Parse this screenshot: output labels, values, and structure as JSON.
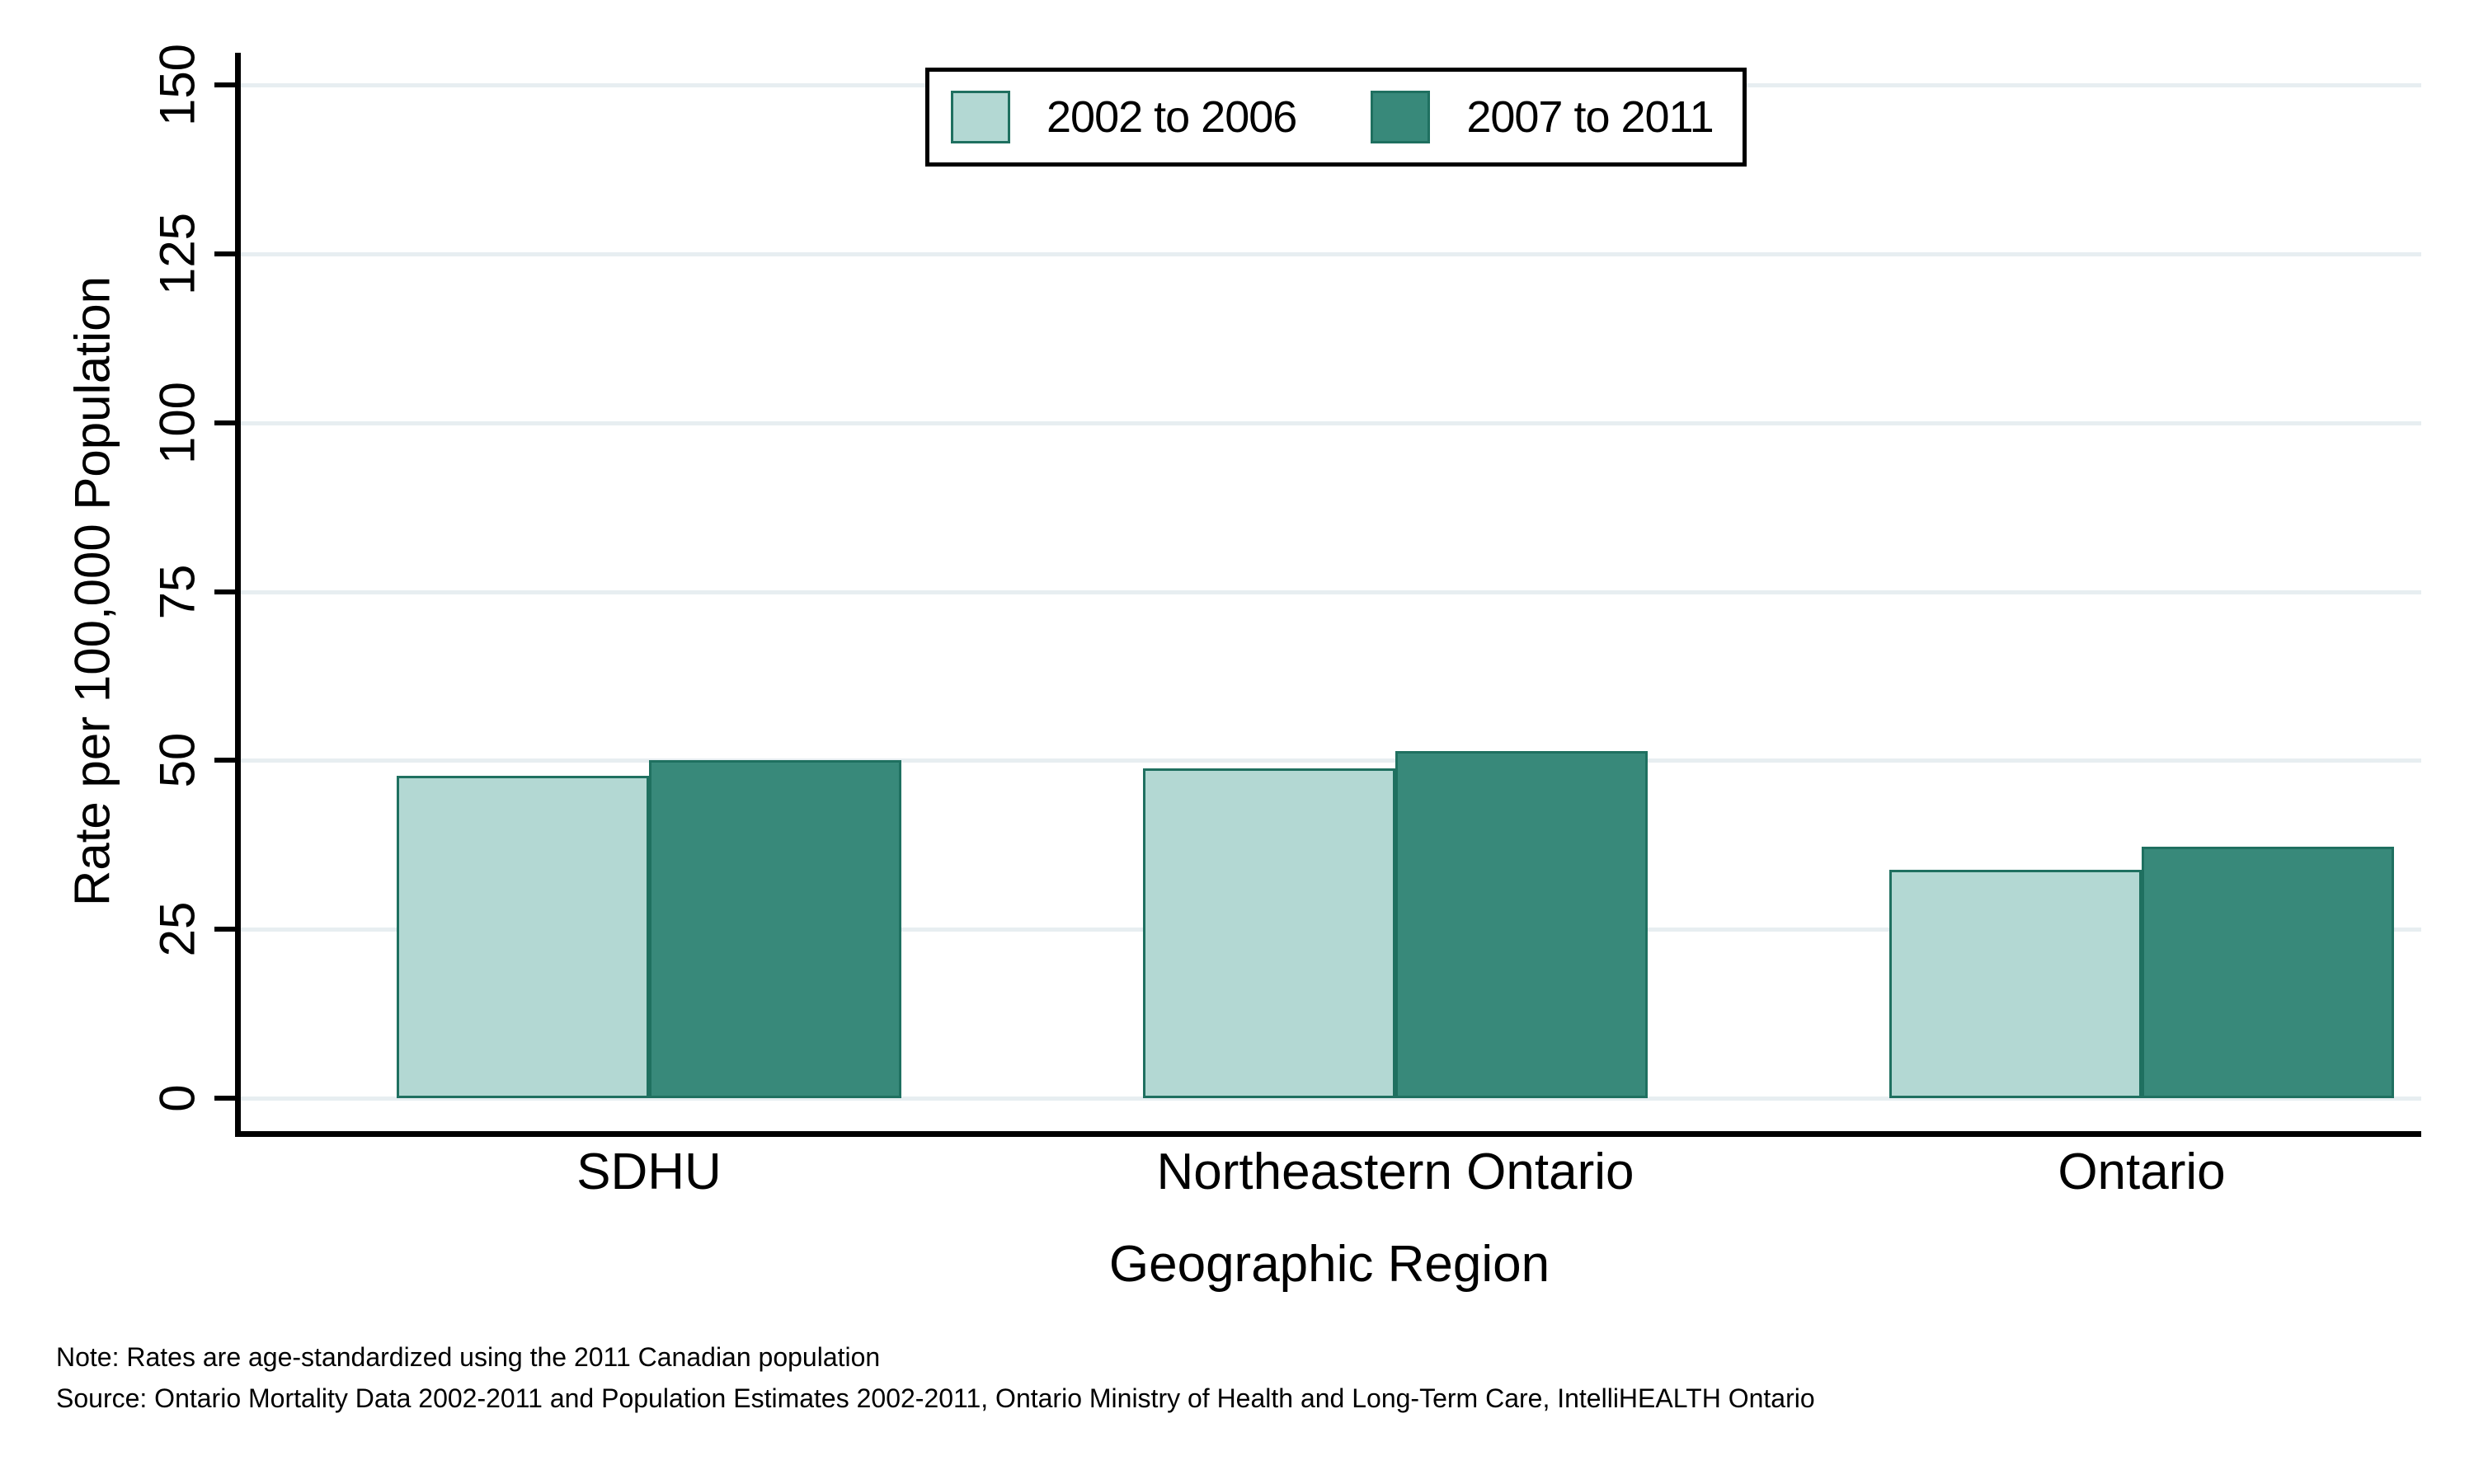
{
  "chart_data": {
    "type": "bar",
    "title": "",
    "categories": [
      "SDHU",
      "Northeastern Ontario",
      "Ontario"
    ],
    "series": [
      {
        "name": "2002 to 2006",
        "values": [
          47.7,
          48.8,
          33.8
        ],
        "color": "#b3d8d3"
      },
      {
        "name": "2007 to 2011",
        "values": [
          50.0,
          51.4,
          37.2
        ],
        "color": "#38897a"
      }
    ],
    "xlabel": "Geographic Region",
    "ylabel": "Rate per 100,000 Population",
    "yticks": [
      0,
      25,
      50,
      75,
      100,
      125,
      150
    ],
    "ylim": [
      0,
      150
    ],
    "grid": true,
    "legend_position": "top-center",
    "colors": {
      "bar_border": "#1f7060",
      "gridline": "#e7eef1",
      "axis": "#000000",
      "legend_border": "#000000",
      "text": "#000000"
    }
  },
  "notes": {
    "note": "Note: Rates are age-standardized using the 2011 Canadian population",
    "source": "Source: Ontario Mortality Data 2002-2011 and Population Estimates 2002-2011, Ontario Ministry of Health and Long-Term Care, IntelliHEALTH Ontario"
  }
}
